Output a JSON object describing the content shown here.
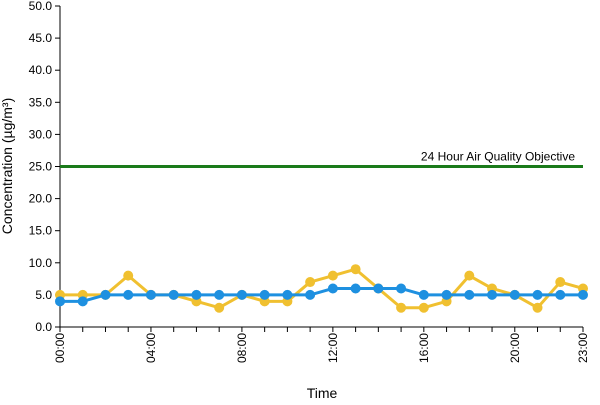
{
  "chart_data": {
    "type": "line",
    "title": "",
    "xlabel": "Time",
    "ylabel": "Concentration (µg/m³)",
    "ylim": [
      0,
      50
    ],
    "ytick_values": [
      0,
      5,
      10,
      15,
      20,
      25,
      30,
      35,
      40,
      45,
      50
    ],
    "ytick_labels": [
      "0.0",
      "5.0",
      "10.0",
      "15.0",
      "20.0",
      "25.0",
      "30.0",
      "35.0",
      "40.0",
      "45.0",
      "50.0"
    ],
    "x_hours": [
      0,
      1,
      2,
      3,
      4,
      5,
      6,
      7,
      8,
      9,
      10,
      11,
      12,
      13,
      14,
      15,
      16,
      17,
      18,
      19,
      20,
      21,
      22,
      23
    ],
    "xtick_labels": [
      {
        "hour": 0,
        "label": "00:00"
      },
      {
        "hour": 4,
        "label": "04:00"
      },
      {
        "hour": 8,
        "label": "08:00"
      },
      {
        "hour": 12,
        "label": "12:00"
      },
      {
        "hour": 16,
        "label": "16:00"
      },
      {
        "hour": 20,
        "label": "20:00"
      },
      {
        "hour": 23,
        "label": "23:00"
      }
    ],
    "grid": false,
    "legend": "none",
    "series": [
      {
        "color": "#f0c030",
        "values": [
          5,
          5,
          5,
          8,
          5,
          5,
          4,
          3,
          5,
          4,
          4,
          7,
          8,
          9,
          6,
          3,
          3,
          4,
          8,
          6,
          5,
          3,
          7,
          6
        ]
      },
      {
        "color": "#1e90e0",
        "values": [
          4,
          4,
          5,
          5,
          5,
          5,
          5,
          5,
          5,
          5,
          5,
          5,
          6,
          6,
          6,
          6,
          5,
          5,
          5,
          5,
          5,
          5,
          5,
          5
        ]
      }
    ],
    "reference_line": {
      "value": 25,
      "label": "24 Hour Air Quality Objective",
      "color": "#1a7a1a"
    }
  }
}
